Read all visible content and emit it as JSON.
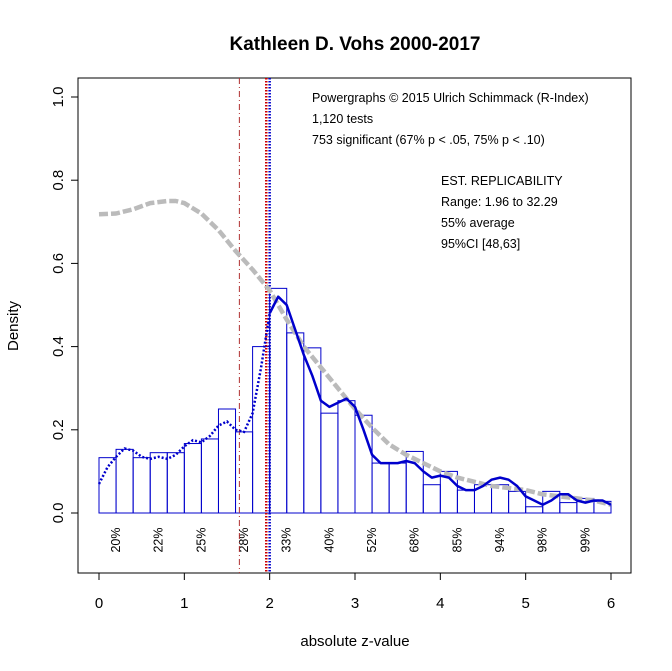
{
  "chart_data": {
    "type": "bar",
    "title": "Kathleen D. Vohs 2000-2017",
    "xlabel": "absolute z-value",
    "ylabel": "Density",
    "xlim": [
      0,
      6
    ],
    "ylim": [
      -0.15,
      1.05
    ],
    "x_ticks": [
      "0",
      "1",
      "2",
      "3",
      "4",
      "5",
      "6"
    ],
    "y_ticks": [
      "0.0",
      "0.2",
      "0.4",
      "0.6",
      "0.8",
      "1.0"
    ],
    "bin_width": 0.2,
    "histogram": [
      0.133,
      0.153,
      0.133,
      0.145,
      0.145,
      0.167,
      0.178,
      0.25,
      0.195,
      0.4,
      0.54,
      0.433,
      0.397,
      0.24,
      0.27,
      0.235,
      0.12,
      0.12,
      0.148,
      0.068,
      0.1,
      0.055,
      0.068,
      0.068,
      0.052,
      0.015,
      0.052,
      0.025,
      0.035,
      0.028
    ],
    "power_labels": [
      {
        "x": 0.2,
        "label": "20%"
      },
      {
        "x": 0.7,
        "label": "22%"
      },
      {
        "x": 1.2,
        "label": "25%"
      },
      {
        "x": 1.7,
        "label": "28%"
      },
      {
        "x": 2.2,
        "label": "33%"
      },
      {
        "x": 2.7,
        "label": "40%"
      },
      {
        "x": 3.2,
        "label": "52%"
      },
      {
        "x": 3.7,
        "label": "68%"
      },
      {
        "x": 4.2,
        "label": "85%"
      },
      {
        "x": 4.7,
        "label": "94%"
      },
      {
        "x": 5.2,
        "label": "98%"
      },
      {
        "x": 5.7,
        "label": "99%"
      }
    ],
    "vertical_lines": [
      {
        "x": 1.645,
        "color": "#b03030",
        "style": "dashdot"
      },
      {
        "x": 1.96,
        "color": "#cc0000",
        "style": "dotted"
      },
      {
        "x": 2.0,
        "color": "#0000cc",
        "style": "dotted"
      }
    ],
    "series": [
      {
        "name": "observed density",
        "color": "#0000cc",
        "x": [
          0.0,
          0.1,
          0.2,
          0.3,
          0.4,
          0.5,
          0.6,
          0.7,
          0.8,
          0.9,
          1.0,
          1.1,
          1.2,
          1.3,
          1.4,
          1.5,
          1.6,
          1.7,
          1.8,
          1.9,
          2.0,
          2.05,
          2.1,
          2.2,
          2.3,
          2.4,
          2.5,
          2.6,
          2.7,
          2.8,
          2.9,
          3.0,
          3.1,
          3.2,
          3.3,
          3.4,
          3.5,
          3.6,
          3.7,
          3.8,
          3.9,
          4.0,
          4.1,
          4.2,
          4.3,
          4.4,
          4.5,
          4.6,
          4.7,
          4.8,
          4.9,
          5.0,
          5.1,
          5.2,
          5.3,
          5.4,
          5.5,
          5.6,
          5.7,
          5.8,
          5.9,
          6.0
        ],
        "y": [
          0.07,
          0.11,
          0.135,
          0.155,
          0.15,
          0.135,
          0.13,
          0.135,
          0.13,
          0.14,
          0.16,
          0.175,
          0.17,
          0.185,
          0.21,
          0.22,
          0.2,
          0.195,
          0.24,
          0.35,
          0.48,
          0.5,
          0.52,
          0.5,
          0.44,
          0.38,
          0.33,
          0.27,
          0.255,
          0.265,
          0.275,
          0.255,
          0.2,
          0.14,
          0.12,
          0.12,
          0.12,
          0.125,
          0.12,
          0.1,
          0.085,
          0.09,
          0.085,
          0.065,
          0.055,
          0.055,
          0.065,
          0.08,
          0.085,
          0.08,
          0.065,
          0.04,
          0.03,
          0.02,
          0.03,
          0.045,
          0.045,
          0.03,
          0.025,
          0.03,
          0.03,
          0.02
        ],
        "style": "dotted below 1.96, solid above"
      },
      {
        "name": "fitted model",
        "color": "#bbbbbb",
        "x": [
          0.0,
          0.2,
          0.4,
          0.6,
          0.8,
          0.9,
          1.0,
          1.2,
          1.4,
          1.6,
          1.8,
          2.0,
          2.2,
          2.4,
          2.6,
          2.8,
          3.0,
          3.2,
          3.4,
          3.6,
          3.8,
          4.0,
          4.2,
          4.4,
          4.6,
          4.8,
          5.0,
          5.2,
          5.4,
          5.6,
          5.8,
          6.0
        ],
        "y": [
          0.718,
          0.72,
          0.73,
          0.745,
          0.75,
          0.75,
          0.745,
          0.72,
          0.68,
          0.63,
          0.585,
          0.535,
          0.465,
          0.4,
          0.35,
          0.3,
          0.25,
          0.205,
          0.165,
          0.14,
          0.12,
          0.1,
          0.085,
          0.075,
          0.065,
          0.06,
          0.055,
          0.045,
          0.04,
          0.035,
          0.03,
          0.02
        ]
      }
    ],
    "annotations": {
      "lines": [
        "Powergraphs © 2015 Ulrich Schimmack (R-Index)",
        "1,120 tests",
        "753 significant (67% p < .05, 75% p < .10)"
      ],
      "replicability": [
        "EST. REPLICABILITY",
        "Range: 1.96 to 32.29",
        "55% average",
        "95%CI [48,63]"
      ]
    }
  }
}
